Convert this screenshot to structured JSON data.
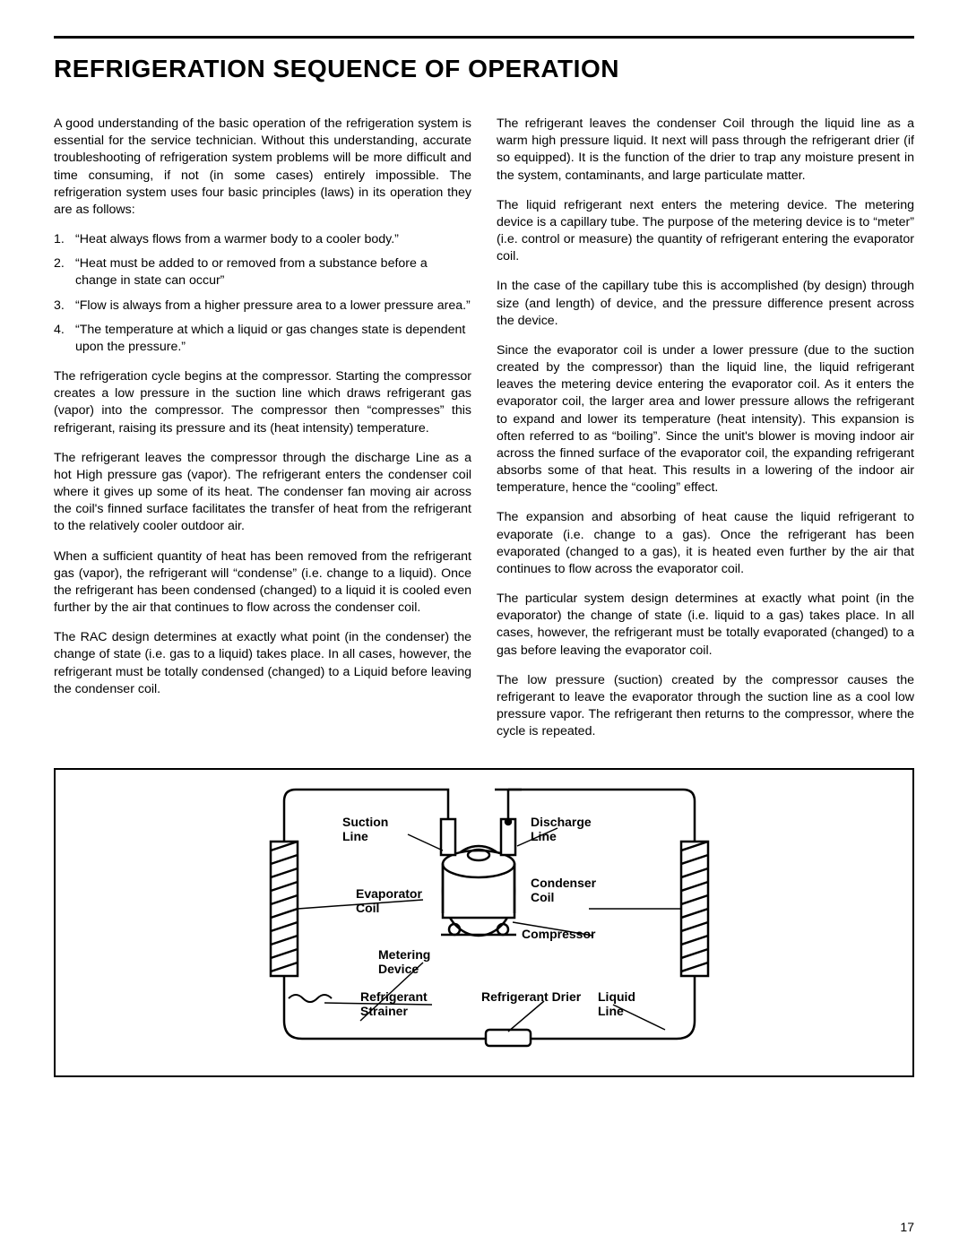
{
  "title": "REFRIGERATION SEQUENCE OF OPERATION",
  "page_number": "17",
  "left_col": {
    "intro": "A good understanding of the basic operation of the refrigeration system is essential for the service technician. Without this understanding, accurate troubleshooting of refrigeration system problems will be more difficult and time consuming, if not (in some cases) entirely impossible. The refrigeration system uses four basic principles (laws) in its operation they are as follows:",
    "laws": [
      "“Heat always flows from a warmer body to a cooler body.”",
      "“Heat must be added to or removed from a substance before a change in state can occur”",
      "“Flow is always from a higher pressure area to a lower pressure area.”",
      "“The temperature at which a liquid or gas changes state is dependent upon the pressure.”"
    ],
    "p1": "The refrigeration cycle begins at the compressor. Starting the compressor creates a low pressure in the suction line which draws refrigerant gas (vapor) into the compressor. The compressor then “compresses” this refrigerant, raising its pressure and its (heat intensity) temperature.",
    "p2": "The refrigerant leaves the compressor through the discharge Line as a hot High pressure gas (vapor). The refrigerant enters the condenser coil where it gives up some of its heat. The condenser fan moving air across the coil's finned surface facilitates the transfer of heat from the refrigerant to the relatively cooler outdoor air.",
    "p3": "When a sufficient quantity of heat has been removed from the refrigerant gas (vapor), the refrigerant will “condense” (i.e. change to a liquid). Once the refrigerant has been condensed (changed) to a liquid it is cooled even further by the air that continues to flow across the condenser coil.",
    "p4": "The RAC design determines at exactly what point (in the condenser) the change of state (i.e. gas to a liquid) takes place. In all cases, however, the refrigerant must be totally condensed (changed) to a Liquid before leaving the condenser coil."
  },
  "right_col": {
    "p1": "The refrigerant leaves the condenser Coil through the liquid line as a warm high pressure liquid. It next will pass  through the refrigerant drier (if so equipped). It is the function of the drier to trap any moisture present in the system, contaminants, and large particulate matter.",
    "p2": "The liquid refrigerant next enters the metering device. The metering device is a capillary tube. The purpose of the metering device is to “meter” (i.e. control or measure) the quantity of refrigerant entering the evaporator coil.",
    "p3": "In the case of the capillary tube this is accomplished (by design) through size (and length) of device, and the pressure difference present across the device.",
    "p4": "Since the evaporator coil is under a lower pressure (due to the suction created by the compressor) than the liquid line, the liquid refrigerant leaves the metering device entering the evaporator coil. As it enters the evaporator coil, the larger area and lower pressure allows the refrigerant to expand and lower its temperature (heat intensity). This expansion is often referred to as “boiling”. Since the unit's blower is moving indoor air across the finned surface of the evaporator coil, the expanding refrigerant absorbs some of that heat. This results in a lowering of the indoor air temperature, hence the “cooling” effect.",
    "p5": "The expansion and absorbing of heat cause the liquid refrigerant to evaporate (i.e. change to a gas). Once the refrigerant has  been evaporated (changed to a gas), it is heated even further by the air that continues to flow across the evaporator coil.",
    "p6": "The particular system design determines at exactly what point (in the evaporator) the change of state (i.e. liquid to a gas) takes place. In all cases, however, the refrigerant must be totally evaporated (changed) to a gas before leaving the evaporator coil.",
    "p7": "The low pressure (suction) created by the compressor causes the refrigerant to leave the evaporator through the suction line as a cool low pressure vapor. The refrigerant then returns to the compressor, where the cycle is repeated."
  },
  "diagram": {
    "labels": {
      "suction": "Suction\nLine",
      "discharge": "Discharge\nLine",
      "evap": "Evaporator\nCoil",
      "cond": "Condenser\nCoil",
      "compressor": "Compressor",
      "metering": "Metering\nDevice",
      "drier": "Refrigerant Drier",
      "strainer": "Refrigerant\nStrainer",
      "liquid": "Liquid\nLine"
    },
    "colors": {
      "stroke": "#000000",
      "bg": "#ffffff"
    }
  }
}
